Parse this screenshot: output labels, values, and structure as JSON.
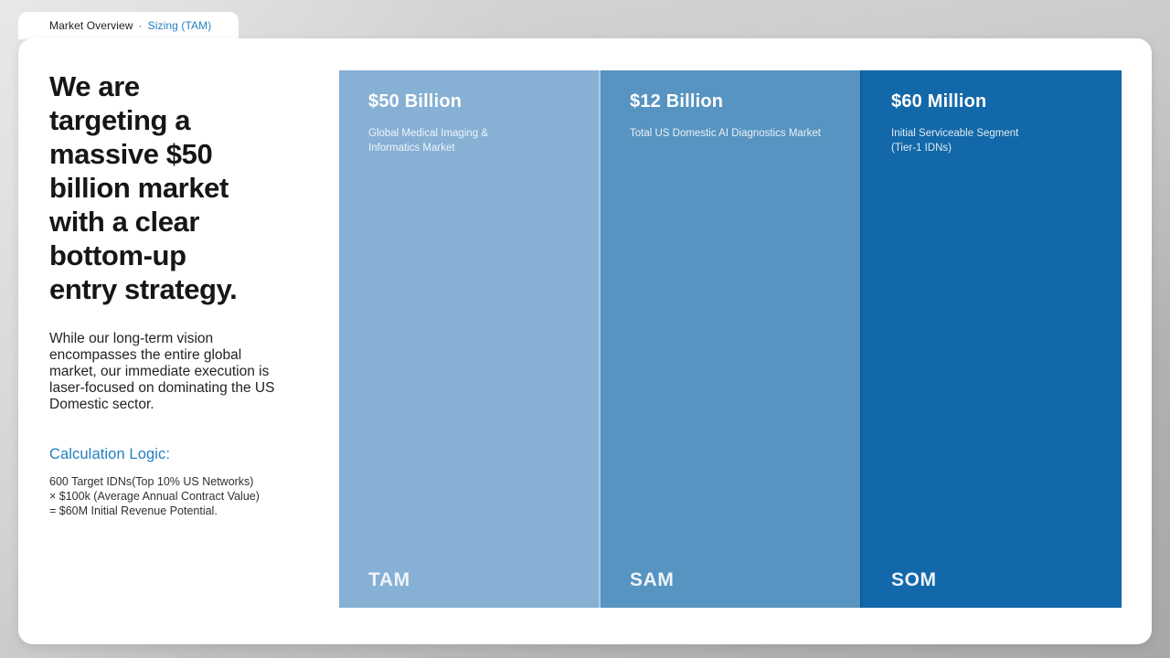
{
  "tab": {
    "primary": "Market Overview",
    "separator": "·",
    "secondary": "Sizing (TAM)"
  },
  "left_panel": {
    "headline": "We are targeting a massive $50 billion market with a clear bottom-up entry strategy.",
    "paragraph": "While our long-term vision encompasses the entire global market, our immediate execution is laser-focused on dominating the US Domestic sector.",
    "calculation": {
      "title": "Calculation Logic:",
      "line1": "600 Target IDNs(Top 10% US Networks)",
      "line2": "× $100k (Average Annual Contract Value)",
      "line3": "= $60M Initial Revenue Potential."
    }
  },
  "market_columns": [
    {
      "label": "TAM",
      "value": "$50 Billion",
      "description": "Global Medical Imaging & Informatics Market",
      "color": "#86b0d4"
    },
    {
      "label": "SAM",
      "value": "$12 Billion",
      "description": "Total US Domestic AI Diagnostics Market",
      "color": "#5794c1"
    },
    {
      "label": "SOM",
      "value": "$60 Million",
      "description": "Initial Serviceable Segment (Tier-1 IDNs)",
      "color": "#1268a8"
    }
  ],
  "colors": {
    "accent_blue": "#2380bf",
    "card_background": "#ffffff",
    "tam_column": "#86b0d4",
    "sam_column": "#5794c1",
    "som_column": "#1268a8"
  }
}
